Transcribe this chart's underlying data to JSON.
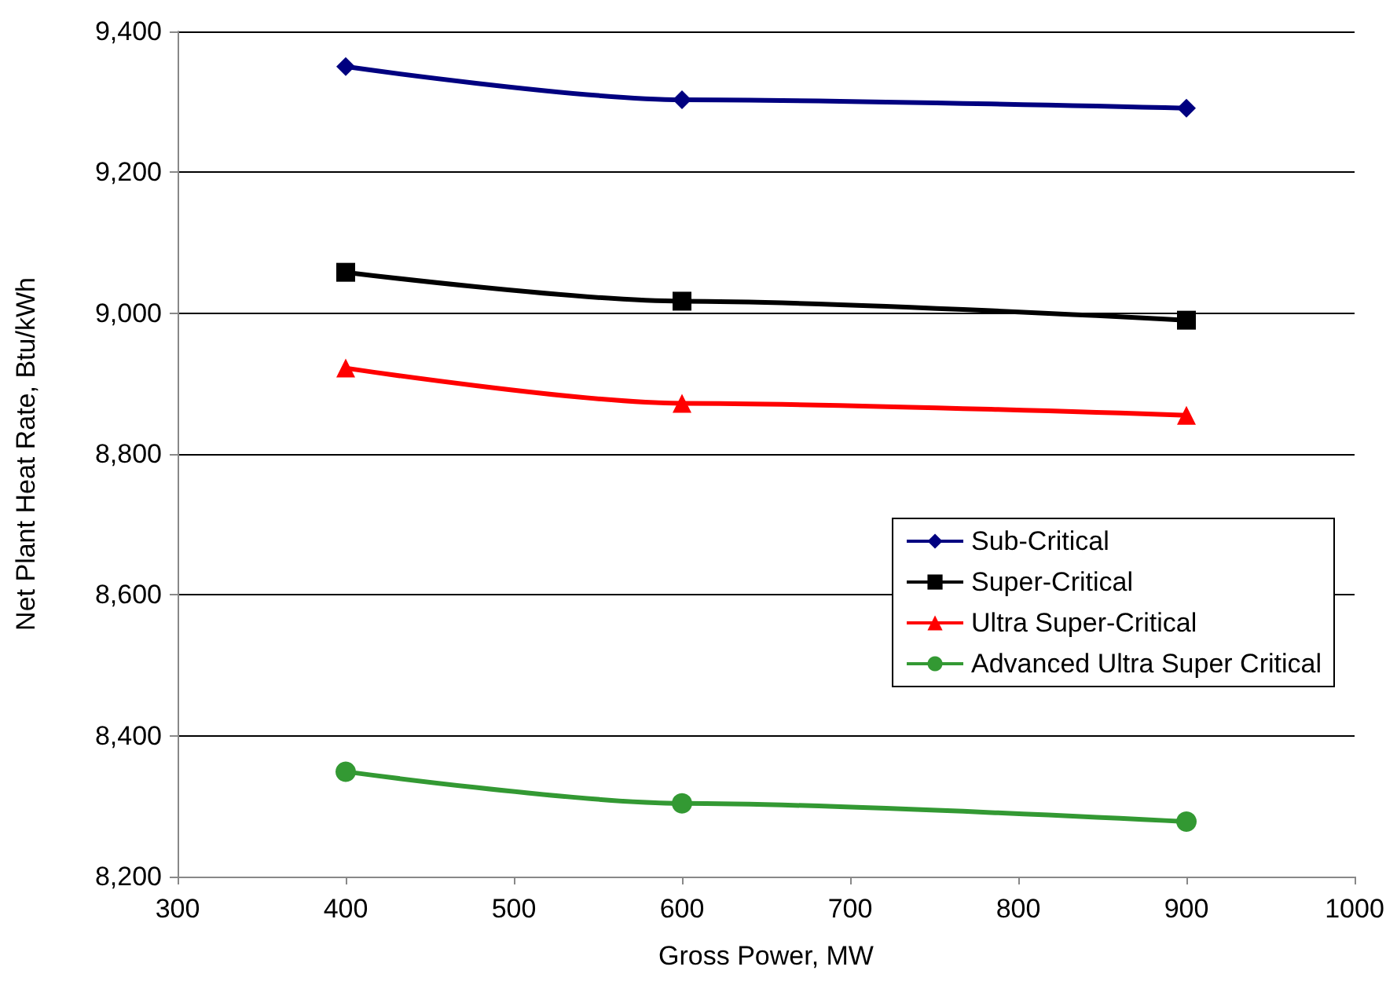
{
  "chart_data": {
    "type": "line",
    "xlabel": "Gross Power, MW",
    "ylabel": "Net Plant Heat Rate, Btu/kWh",
    "x": [
      400,
      600,
      900
    ],
    "series": [
      {
        "name": "Sub-Critical",
        "color": "#000080",
        "marker": "diamond",
        "values": [
          9350,
          9303,
          9291
        ]
      },
      {
        "name": "Super-Critical",
        "color": "#000000",
        "marker": "square",
        "values": [
          9058,
          9017,
          8990
        ]
      },
      {
        "name": "Ultra Super-Critical",
        "color": "#ff0000",
        "marker": "triangle",
        "values": [
          8922,
          8872,
          8855
        ]
      },
      {
        "name": "Advanced Ultra Super Critical",
        "color": "#339933",
        "marker": "circle",
        "values": [
          8349,
          8304,
          8278
        ]
      }
    ],
    "xlim": [
      300,
      1000
    ],
    "xticks": [
      300,
      400,
      500,
      600,
      700,
      800,
      900,
      1000
    ],
    "ylim": [
      8200,
      9400
    ],
    "yticks": [
      {
        "value": 8200,
        "label": "8,200"
      },
      {
        "value": 8400,
        "label": "8,400"
      },
      {
        "value": 8600,
        "label": "8,600"
      },
      {
        "value": 8800,
        "label": "8,800"
      },
      {
        "value": 9000,
        "label": "9,000"
      },
      {
        "value": 9200,
        "label": "9,200"
      },
      {
        "value": 9400,
        "label": "9,400"
      }
    ],
    "grid": "y",
    "legend": "right",
    "line_style": "solid"
  }
}
